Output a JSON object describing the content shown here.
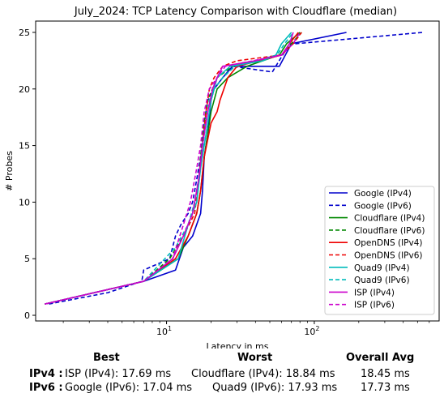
{
  "chart_data": {
    "type": "line",
    "title": "July_2024: TCP Latency Comparison with Cloudflare (median)",
    "xlabel": "Latency in ms",
    "ylabel": "# Probes",
    "xscale": "log",
    "xlim": [
      1.3,
      700
    ],
    "ylim": [
      -0.5,
      26
    ],
    "xticks": [
      10,
      100
    ],
    "xtick_labels": [
      "10^1",
      "10^2"
    ],
    "yticks": [
      0,
      5,
      10,
      15,
      20,
      25
    ],
    "ytick_labels": [
      "0",
      "5",
      "10",
      "15",
      "20",
      "25"
    ],
    "grid": false,
    "legend_position": "lower-right",
    "series": [
      {
        "name": "Google (IPv4)",
        "color": "#0000cc",
        "dash": "solid",
        "x": [
          1.5,
          7,
          11.5,
          13,
          15,
          17,
          17.5,
          18,
          19,
          20,
          21,
          24,
          28,
          58,
          70,
          165
        ],
        "y": [
          1,
          3,
          4,
          6,
          7,
          9,
          11,
          14,
          16,
          19,
          20,
          21,
          22,
          22,
          24,
          25
        ]
      },
      {
        "name": "Google (IPv6)",
        "color": "#0000cc",
        "dash": "dashed",
        "x": [
          1.6,
          4,
          6.8,
          7,
          10.5,
          11.5,
          12.5,
          14,
          15,
          16,
          17,
          18,
          19,
          21,
          24,
          28,
          52,
          68,
          75,
          540
        ],
        "y": [
          1,
          2,
          3,
          4,
          5,
          7,
          8,
          9,
          10,
          12,
          14,
          17,
          19,
          20,
          21,
          22,
          21.5,
          24,
          24,
          25
        ]
      },
      {
        "name": "Cloudflare (IPv4)",
        "color": "#008800",
        "dash": "solid",
        "x": [
          1.5,
          7,
          12,
          14,
          16,
          17,
          18,
          19,
          20,
          22,
          26,
          35,
          58,
          65,
          80
        ],
        "y": [
          1,
          3,
          5,
          7,
          9,
          11,
          14,
          16,
          18,
          20,
          21,
          22,
          23,
          24,
          25
        ]
      },
      {
        "name": "Cloudflare (IPv6)",
        "color": "#008800",
        "dash": "dashed",
        "x": [
          1.5,
          7,
          10.5,
          13,
          15,
          16.5,
          17,
          18,
          19,
          22,
          28,
          60,
          70,
          82
        ],
        "y": [
          1,
          3,
          5,
          7,
          9,
          12,
          14,
          17,
          19,
          21,
          22,
          23,
          24,
          25
        ]
      },
      {
        "name": "OpenDNS (IPv4)",
        "color": "#ee0000",
        "dash": "solid",
        "x": [
          1.5,
          7,
          11.5,
          14,
          16,
          17,
          18,
          20,
          22,
          23,
          26,
          30,
          60,
          68,
          78
        ],
        "y": [
          1,
          3,
          5,
          7,
          9,
          11,
          14,
          17,
          18,
          19,
          21,
          22,
          23,
          24,
          25
        ]
      },
      {
        "name": "OpenDNS (IPv6)",
        "color": "#ee0000",
        "dash": "dashed",
        "x": [
          1.5,
          7,
          11,
          13,
          15.5,
          16.5,
          17.5,
          18.5,
          19.5,
          21,
          24,
          30,
          60,
          72,
          82
        ],
        "y": [
          1,
          3,
          5,
          7,
          9,
          12,
          15,
          18,
          20,
          21,
          22,
          22.5,
          23,
          24,
          25
        ]
      },
      {
        "name": "Quad9 (IPv4)",
        "color": "#00bbbb",
        "dash": "solid",
        "x": [
          1.5,
          7,
          12,
          14,
          16,
          17,
          18.5,
          20,
          22,
          27,
          45,
          55,
          60,
          70
        ],
        "y": [
          1,
          3,
          5,
          8,
          10,
          13,
          16,
          19,
          21,
          22,
          22.5,
          23,
          24,
          25
        ]
      },
      {
        "name": "Quad9 (IPv6)",
        "color": "#00bbbb",
        "dash": "dashed",
        "x": [
          1.5,
          7,
          11.5,
          14,
          15.5,
          17,
          18,
          19.5,
          21,
          24,
          29,
          56,
          63,
          72
        ],
        "y": [
          1,
          3,
          6,
          8,
          10,
          13,
          16,
          19,
          20,
          21,
          22,
          23,
          24,
          25
        ]
      },
      {
        "name": "ISP (IPv4)",
        "color": "#cc00cc",
        "dash": "solid",
        "x": [
          1.5,
          7,
          11,
          13,
          15,
          16.5,
          17.5,
          19,
          20.5,
          22,
          24,
          40,
          60,
          68,
          72
        ],
        "y": [
          1,
          3,
          5,
          7,
          9,
          12,
          15,
          18,
          20,
          21,
          22,
          22.5,
          23,
          24,
          25
        ]
      },
      {
        "name": "ISP (IPv6)",
        "color": "#cc00cc",
        "dash": "dashed",
        "x": [
          1.5,
          7,
          11,
          13,
          14.5,
          16,
          17,
          18,
          19.5,
          22,
          25,
          60,
          72,
          80
        ],
        "y": [
          1,
          3,
          5,
          8,
          10,
          13,
          15,
          18,
          20,
          21,
          22,
          23,
          24,
          25
        ]
      }
    ]
  },
  "summary": {
    "headers": {
      "best": "Best",
      "worst": "Worst",
      "avg": "Overall Avg"
    },
    "rows": [
      {
        "label": "IPv4 :",
        "best": "ISP (IPv4): 17.69 ms",
        "worst": "Cloudflare (IPv4): 18.84 ms",
        "avg": "18.45 ms"
      },
      {
        "label": "IPv6 :",
        "best": "Google (IPv6): 17.04 ms",
        "worst": "Quad9 (IPv6): 17.93 ms",
        "avg": "17.73 ms"
      }
    ]
  }
}
